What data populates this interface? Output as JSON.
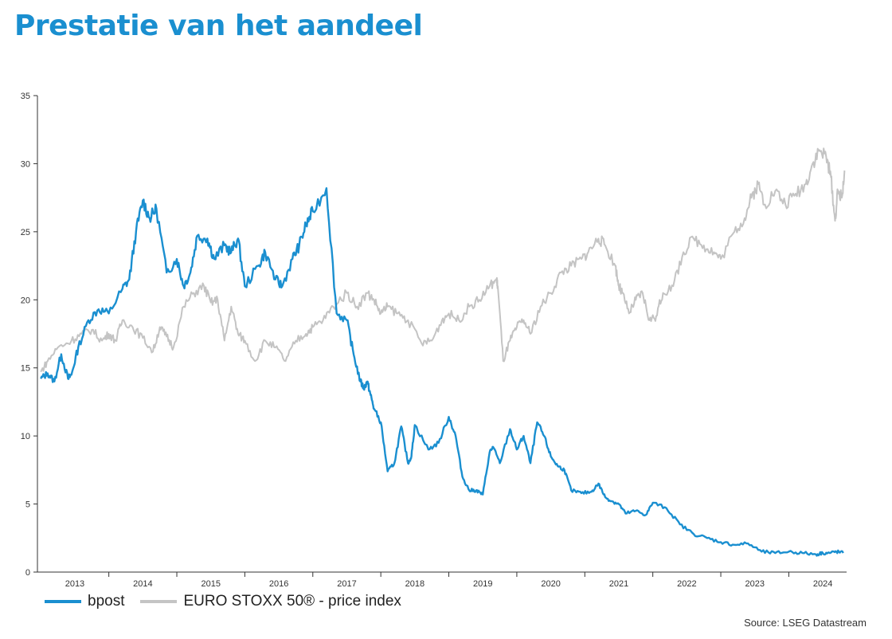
{
  "title": "Prestatie van het aandeel",
  "source": "Source: LSEG Datastream",
  "colors": {
    "title": "#1a8fd0",
    "bpost": "#1a8fd0",
    "eurostoxx": "#c4c4c4",
    "axis": "#333333"
  },
  "chart_data": {
    "type": "line",
    "title": "Prestatie van het aandeel",
    "xlabel": "",
    "ylabel": "",
    "xlim": [
      2012.95,
      2024.85
    ],
    "ylim": [
      0,
      35
    ],
    "yticks": [
      0,
      5,
      10,
      15,
      20,
      25,
      30,
      35
    ],
    "xticks": [
      "2013",
      "2014",
      "2015",
      "2016",
      "2017",
      "2018",
      "2019",
      "2020",
      "2021",
      "2022",
      "2023",
      "2024"
    ],
    "grid": false,
    "legend": "bottom-left",
    "series": [
      {
        "name": "bpost",
        "color": "#1a8fd0",
        "x": [
          2013.0,
          2013.1,
          2013.2,
          2013.3,
          2013.4,
          2013.45,
          2013.55,
          2013.7,
          2013.85,
          2014.0,
          2014.2,
          2014.3,
          2014.4,
          2014.5,
          2014.6,
          2014.7,
          2014.85,
          2015.0,
          2015.1,
          2015.2,
          2015.3,
          2015.45,
          2015.55,
          2015.7,
          2015.8,
          2015.9,
          2016.0,
          2016.2,
          2016.3,
          2016.45,
          2016.55,
          2016.7,
          2016.8,
          2016.9,
          2017.0,
          2017.2,
          2017.35,
          2017.5,
          2017.6,
          2017.7,
          2017.75,
          2017.8,
          2017.85,
          2017.9,
          2018.0,
          2018.1,
          2018.2,
          2018.3,
          2018.4,
          2018.45,
          2018.5,
          2018.7,
          2018.85,
          2019.0,
          2019.1,
          2019.2,
          2019.3,
          2019.4,
          2019.5,
          2019.6,
          2019.65,
          2019.75,
          2019.9,
          2020.0,
          2020.1,
          2020.2,
          2020.3,
          2020.4,
          2020.5,
          2020.6,
          2020.7,
          2020.8,
          2020.95,
          2021.1,
          2021.2,
          2021.3,
          2021.4,
          2021.5,
          2021.6,
          2021.75,
          2021.9,
          2022.0,
          2022.2,
          2022.4,
          2022.6,
          2022.8,
          2023.0,
          2023.2,
          2023.4,
          2023.6,
          2023.8,
          2024.0,
          2024.2,
          2024.4,
          2024.5,
          2024.6,
          2024.7,
          2024.8
        ],
        "values": [
          14.2,
          14.6,
          14.0,
          16.0,
          14.2,
          14.5,
          16.5,
          18.5,
          19.3,
          19.0,
          20.8,
          21.5,
          25.0,
          27.3,
          26.0,
          26.7,
          22.0,
          23.0,
          21.0,
          22.0,
          24.7,
          24.5,
          23.0,
          24.0,
          23.5,
          24.5,
          21.0,
          22.5,
          23.5,
          21.5,
          21.0,
          23.0,
          24.0,
          25.5,
          26.5,
          28.2,
          19.0,
          18.5,
          16.0,
          14.0,
          13.5,
          14.0,
          13.0,
          12.0,
          11.0,
          7.4,
          8.0,
          10.7,
          8.0,
          8.5,
          10.8,
          9.0,
          9.5,
          11.4,
          10.0,
          7.0,
          6.0,
          6.0,
          5.7,
          8.8,
          9.2,
          8.0,
          10.5,
          9.0,
          10.0,
          8.0,
          11.0,
          10.0,
          8.5,
          7.8,
          7.5,
          6.0,
          5.8,
          5.9,
          6.5,
          5.5,
          5.2,
          5.0,
          4.3,
          4.5,
          4.2,
          5.1,
          4.7,
          3.5,
          2.8,
          2.5,
          2.2,
          2.0,
          2.1,
          1.5,
          1.4,
          1.5,
          1.4,
          1.3,
          1.4,
          1.4,
          1.5,
          1.4
        ]
      },
      {
        "name": "EURO STOXX 50® - price index",
        "color": "#c4c4c4",
        "x": [
          2013.0,
          2013.1,
          2013.25,
          2013.45,
          2013.6,
          2013.75,
          2013.9,
          2014.0,
          2014.1,
          2014.2,
          2014.35,
          2014.5,
          2014.65,
          2014.75,
          2014.85,
          2014.95,
          2015.1,
          2015.25,
          2015.4,
          2015.5,
          2015.6,
          2015.7,
          2015.8,
          2015.9,
          2016.0,
          2016.15,
          2016.3,
          2016.45,
          2016.6,
          2016.75,
          2016.9,
          2017.0,
          2017.15,
          2017.3,
          2017.5,
          2017.65,
          2017.8,
          2017.9,
          2018.0,
          2018.1,
          2018.25,
          2018.4,
          2018.6,
          2018.75,
          2018.9,
          2019.0,
          2019.15,
          2019.3,
          2019.45,
          2019.6,
          2019.7,
          2019.72,
          2019.8,
          2019.9,
          2020.0,
          2020.1,
          2020.2,
          2020.35,
          2020.5,
          2020.65,
          2020.8,
          2020.95,
          2021.05,
          2021.2,
          2021.3,
          2021.45,
          2021.5,
          2021.55,
          2021.65,
          2021.75,
          2021.85,
          2021.95,
          2022.05,
          2022.15,
          2022.3,
          2022.45,
          2022.6,
          2022.75,
          2022.9,
          2023.0,
          2023.2,
          2023.35,
          2023.45,
          2023.55,
          2023.65,
          2023.8,
          2023.95,
          2024.1,
          2024.25,
          2024.35,
          2024.45,
          2024.55,
          2024.62,
          2024.68,
          2024.72,
          2024.78,
          2024.82
        ],
        "values": [
          14.7,
          15.5,
          16.5,
          17.0,
          17.5,
          17.8,
          17.0,
          17.5,
          17.0,
          18.5,
          18.0,
          17.2,
          16.2,
          18.0,
          17.3,
          16.5,
          19.5,
          20.5,
          21.0,
          19.8,
          20.0,
          17.0,
          19.5,
          17.5,
          17.0,
          15.5,
          17.0,
          16.5,
          15.5,
          17.0,
          17.5,
          18.0,
          18.5,
          19.5,
          20.5,
          19.5,
          20.5,
          20.0,
          19.0,
          19.5,
          19.0,
          18.5,
          16.8,
          17.0,
          18.5,
          19.0,
          18.5,
          19.5,
          20.0,
          21.0,
          21.5,
          21.0,
          15.5,
          17.0,
          18.0,
          18.5,
          17.5,
          19.5,
          20.5,
          22.0,
          22.5,
          23.0,
          23.5,
          24.5,
          24.0,
          22.5,
          21.0,
          20.5,
          19.0,
          20.0,
          20.5,
          18.5,
          18.8,
          20.5,
          21.0,
          23.5,
          24.5,
          24.0,
          23.5,
          23.0,
          25.0,
          26.0,
          27.5,
          28.5,
          27.0,
          28.0,
          27.0,
          27.8,
          28.5,
          30.0,
          31.0,
          30.5,
          29.0,
          25.8,
          28.0,
          27.5,
          29.5
        ]
      }
    ]
  }
}
